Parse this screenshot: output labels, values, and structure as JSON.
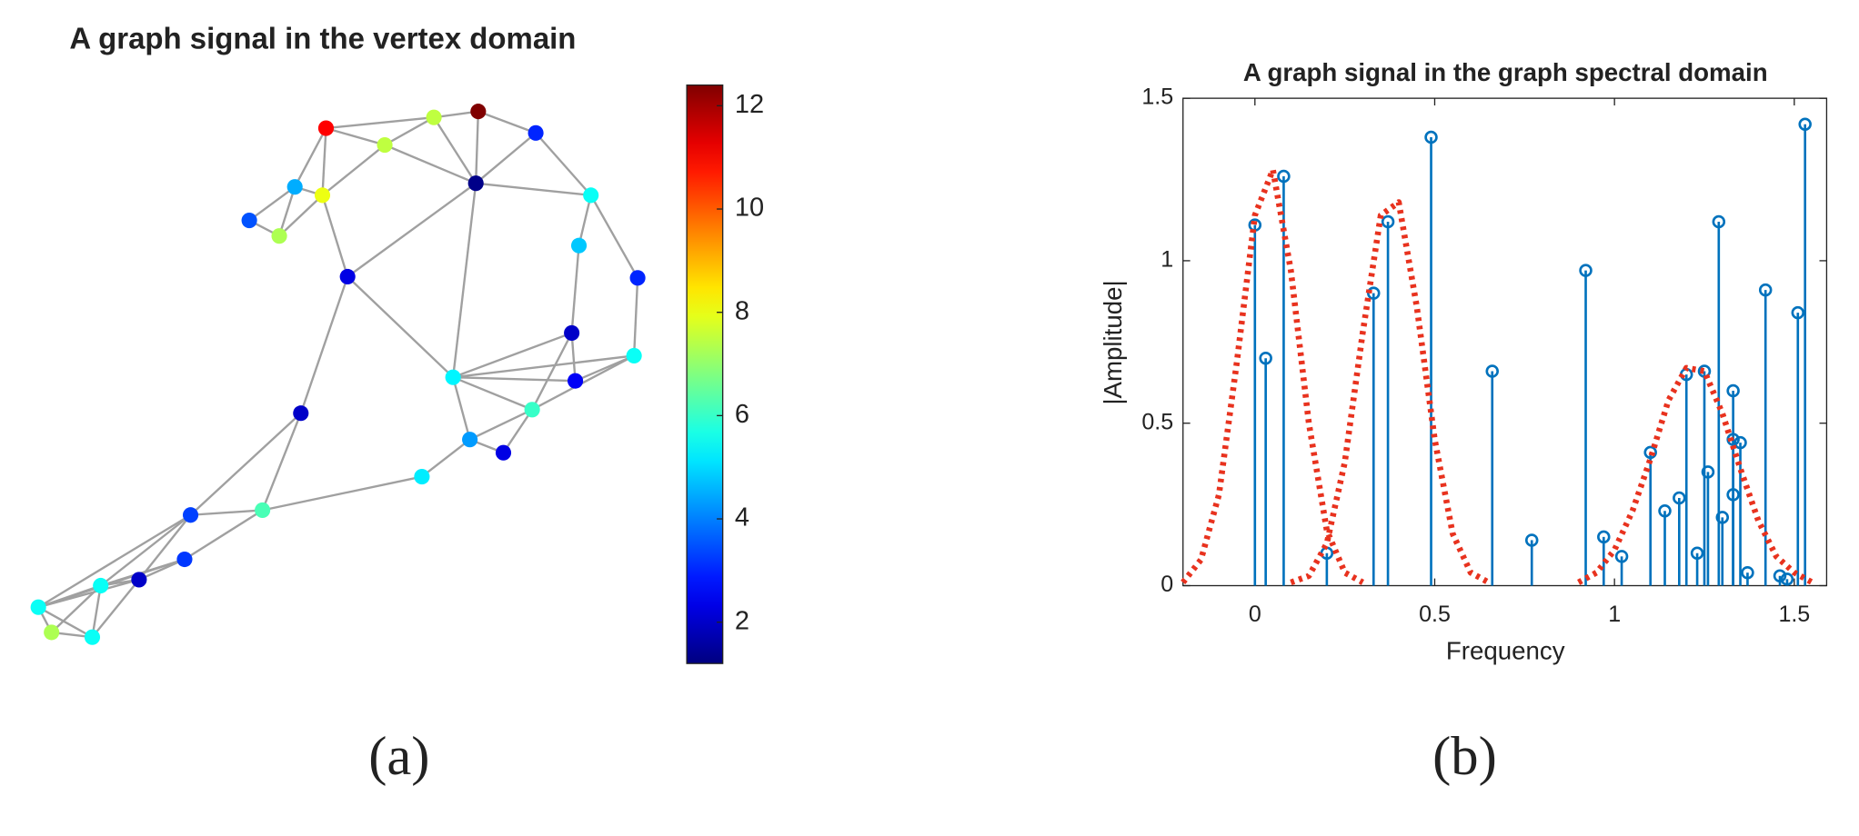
{
  "chart_data": [
    {
      "type": "graph",
      "title": "A graph signal in the vertex domain",
      "caption": "(a)",
      "colormap": "jet",
      "edge_color": "#a0a0a0",
      "node_values": [
        11,
        7.5,
        12.4,
        3,
        7.5,
        4.5,
        8,
        1.3,
        3.5,
        7.3,
        5.5,
        4.8,
        2.3,
        3,
        2,
        5.5,
        5.3,
        2.5,
        2,
        6,
        4.3,
        2.3,
        5.2,
        6.2,
        3.3,
        3.2,
        2,
        5.5,
        5.5,
        7.3,
        5.5
      ],
      "colorbar_lim": [
        1.2,
        12.4
      ],
      "colorbar_ticks": [
        2,
        4,
        6,
        8,
        10,
        12
      ]
    },
    {
      "type": "stem",
      "title": "A graph signal in the graph spectral domain",
      "caption": "(b)",
      "x_label": "Frequency",
      "y_label": "|Amplitude|",
      "xlim": [
        -0.2,
        1.59
      ],
      "ylim": [
        0,
        1.5
      ],
      "xticks": [
        0,
        0.5,
        1,
        1.5
      ],
      "yticks": [
        0,
        0.5,
        1,
        1.5
      ],
      "color": "#0072bd",
      "x": [
        0,
        0.03,
        0.08,
        0.2,
        0.33,
        0.37,
        0.49,
        0.66,
        0.77,
        0.92,
        0.97,
        1.02,
        1.1,
        1.14,
        1.18,
        1.2,
        1.23,
        1.25,
        1.26,
        1.29,
        1.3,
        1.33,
        1.33,
        1.33,
        1.35,
        1.37,
        1.42,
        1.46,
        1.48,
        1.51,
        1.53
      ],
      "values": [
        1.11,
        0.7,
        1.26,
        0.1,
        0.9,
        1.12,
        1.38,
        0.66,
        0.14,
        0.97,
        0.15,
        0.09,
        0.41,
        0.23,
        0.27,
        0.65,
        0.1,
        0.66,
        0.35,
        1.12,
        0.21,
        0.6,
        0.28,
        0.45,
        0.44,
        0.04,
        0.91,
        0.03,
        0.02,
        0.84,
        1.42
      ],
      "curves": [
        {
          "color": "#e8321e",
          "x": [
            -0.2,
            -0.15,
            -0.1,
            -0.05,
            0,
            0.05,
            0.1,
            0.15,
            0.2,
            0.25,
            0.3
          ],
          "values": [
            0.01,
            0.08,
            0.28,
            0.69,
            1.14,
            1.28,
            0.97,
            0.5,
            0.17,
            0.04,
            0.01
          ]
        },
        {
          "color": "#e8321e",
          "x": [
            0.1,
            0.15,
            0.2,
            0.25,
            0.3,
            0.35,
            0.4,
            0.45,
            0.5,
            0.55,
            0.6,
            0.65
          ],
          "values": [
            0.01,
            0.03,
            0.13,
            0.38,
            0.78,
            1.14,
            1.18,
            0.86,
            0.45,
            0.16,
            0.04,
            0.01
          ]
        },
        {
          "color": "#e8321e",
          "x": [
            0.9,
            0.95,
            1.0,
            1.05,
            1.1,
            1.15,
            1.2,
            1.25,
            1.3,
            1.35,
            1.4,
            1.45,
            1.5,
            1.55
          ],
          "values": [
            0.01,
            0.04,
            0.11,
            0.23,
            0.39,
            0.57,
            0.67,
            0.66,
            0.53,
            0.36,
            0.2,
            0.09,
            0.04,
            0.01
          ]
        }
      ]
    }
  ]
}
